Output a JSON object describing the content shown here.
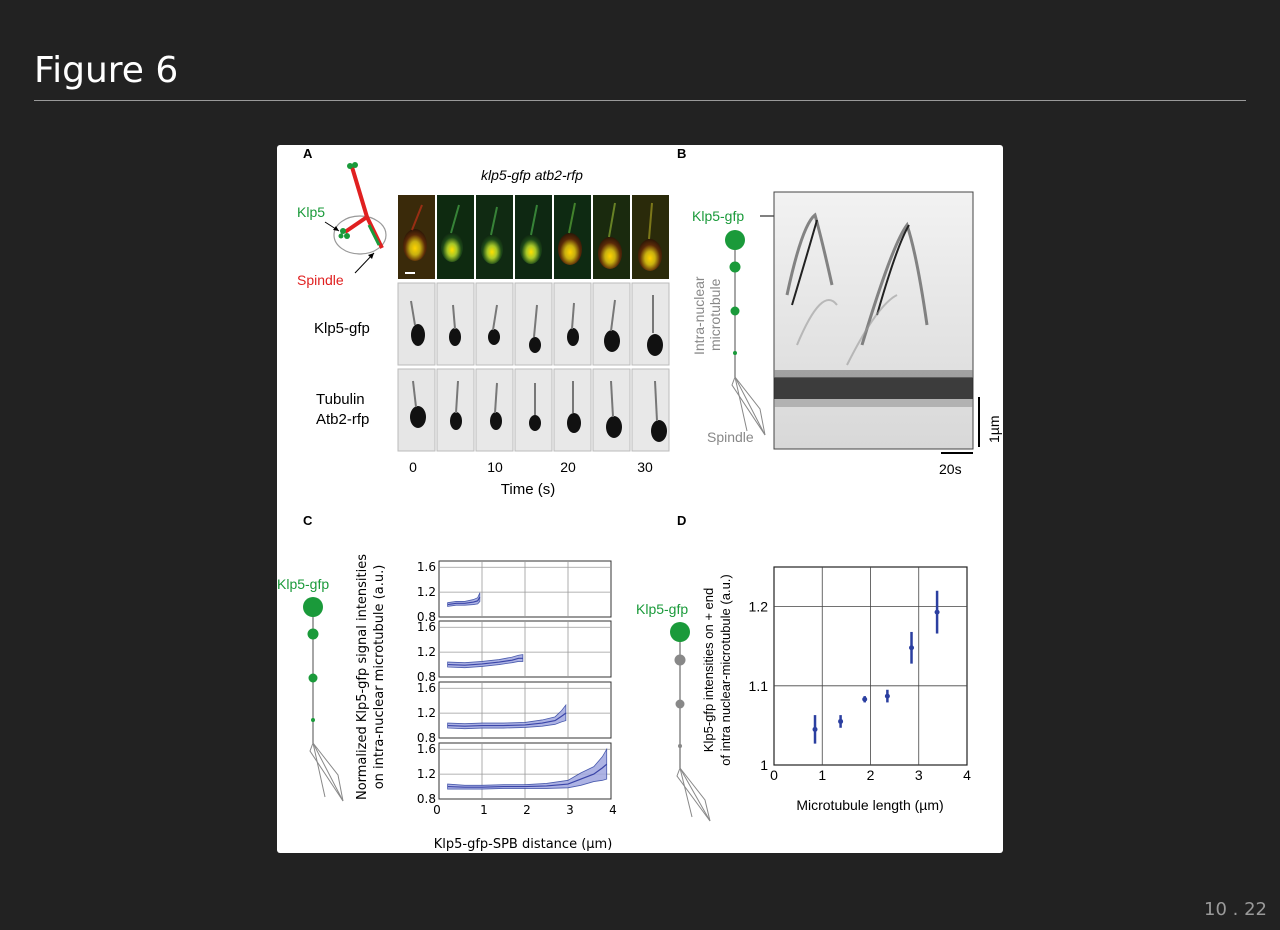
{
  "slide": {
    "title": "Figure 6",
    "page_number": "10 . 22"
  },
  "colors": {
    "background": "#222222",
    "title_text": "#ffffff",
    "klp5_green": "#1a9a3a",
    "spindle_red": "#e02020",
    "data_blue": "#2b3fa0",
    "band_fill": "#9fa6e0"
  },
  "panelA": {
    "letter": "A",
    "header": "klp5-gfp atb2-rfp",
    "klp5_label": "Klp5",
    "spindle_label": "Spindle",
    "row1_label": "Klp5-gfp",
    "row2_label_1": "Tubulin",
    "row2_label_2": "Atb2-rfp",
    "time_ticks": [
      "0",
      "10",
      "20",
      "30"
    ],
    "time_label": "Time (s)"
  },
  "panelB": {
    "letter": "B",
    "klp5_label": "Klp5-gfp",
    "mt_label_1": "Intra-nuclear",
    "mt_label_2": "microtubule",
    "spindle_label": "Spindle",
    "scale_v": "1µm",
    "scale_h": "20s"
  },
  "panelC": {
    "letter": "C",
    "klp5_label": "Klp5-gfp",
    "ylabel_1": "Normalized Klp5-gfp signal intensities",
    "ylabel_2": "on intra-nuclear microtubule (a.u.)",
    "xlabel": "Klp5-gfp-SPB distance (µm)",
    "x_ticks": [
      "0",
      "1",
      "2",
      "3",
      "4"
    ],
    "y_ticks": [
      "1.6",
      "1.2",
      "0.8"
    ]
  },
  "panelD": {
    "letter": "D",
    "klp5_label": "Klp5-gfp",
    "ylabel_1": "Klp5-gfp intensities on + end",
    "ylabel_2": "of intra nuclear-microtubule (a.u.)",
    "xlabel": "Microtubule length (µm)",
    "x_ticks": [
      "0",
      "1",
      "2",
      "3",
      "4"
    ],
    "y_ticks": [
      "1",
      "1.1",
      "1.2"
    ]
  },
  "chart_data": [
    {
      "type": "line",
      "panel": "C",
      "xlabel": "Klp5-gfp-SPB distance (µm)",
      "ylabel": "Normalized Klp5-gfp signal intensities on intra-nuclear microtubule (a.u.)",
      "xlim": [
        0,
        4
      ],
      "ylim": [
        0.8,
        1.7
      ],
      "grid": true,
      "series": [
        {
          "x": [
            0.2,
            0.4,
            0.6,
            0.8,
            0.9,
            0.95
          ],
          "y": [
            1.0,
            1.02,
            1.02,
            1.04,
            1.06,
            1.12
          ],
          "lower": [
            0.97,
            0.99,
            0.99,
            1.0,
            1.01,
            1.05
          ],
          "upper": [
            1.03,
            1.05,
            1.05,
            1.08,
            1.11,
            1.19
          ]
        },
        {
          "x": [
            0.2,
            0.6,
            1.0,
            1.4,
            1.7,
            1.85,
            1.95
          ],
          "y": [
            1.0,
            0.99,
            1.01,
            1.04,
            1.07,
            1.1,
            1.1
          ],
          "lower": [
            0.96,
            0.95,
            0.97,
            1.0,
            1.03,
            1.05,
            1.05
          ],
          "upper": [
            1.04,
            1.03,
            1.05,
            1.08,
            1.12,
            1.15,
            1.16
          ]
        },
        {
          "x": [
            0.2,
            0.6,
            1.0,
            1.5,
            2.0,
            2.4,
            2.7,
            2.85,
            2.95
          ],
          "y": [
            1.0,
            0.99,
            1.0,
            1.0,
            1.01,
            1.04,
            1.08,
            1.15,
            1.2
          ],
          "lower": [
            0.96,
            0.95,
            0.96,
            0.96,
            0.97,
            0.99,
            1.02,
            1.06,
            1.08
          ],
          "upper": [
            1.04,
            1.03,
            1.04,
            1.04,
            1.05,
            1.09,
            1.14,
            1.24,
            1.33
          ]
        },
        {
          "x": [
            0.2,
            0.6,
            1.0,
            1.5,
            2.0,
            2.5,
            3.0,
            3.3,
            3.6,
            3.8,
            3.9
          ],
          "y": [
            1.0,
            0.99,
            0.99,
            1.0,
            1.0,
            1.01,
            1.04,
            1.12,
            1.2,
            1.3,
            1.36
          ],
          "lower": [
            0.96,
            0.96,
            0.96,
            0.97,
            0.97,
            0.97,
            0.98,
            1.02,
            1.08,
            1.1,
            1.12
          ],
          "upper": [
            1.04,
            1.02,
            1.02,
            1.03,
            1.03,
            1.05,
            1.1,
            1.22,
            1.32,
            1.48,
            1.6
          ]
        }
      ]
    },
    {
      "type": "scatter",
      "panel": "D",
      "xlabel": "Microtubule length (µm)",
      "ylabel": "Klp5-gfp intensities on + end of intra nuclear-microtubule (a.u.)",
      "xlim": [
        0,
        4
      ],
      "ylim": [
        1.0,
        1.25
      ],
      "grid": true,
      "x": [
        0.85,
        1.38,
        1.88,
        2.35,
        2.85,
        3.38
      ],
      "y": [
        1.045,
        1.055,
        1.083,
        1.087,
        1.148,
        1.193
      ],
      "err": [
        0.018,
        0.008,
        0.004,
        0.008,
        0.02,
        0.027
      ]
    }
  ]
}
